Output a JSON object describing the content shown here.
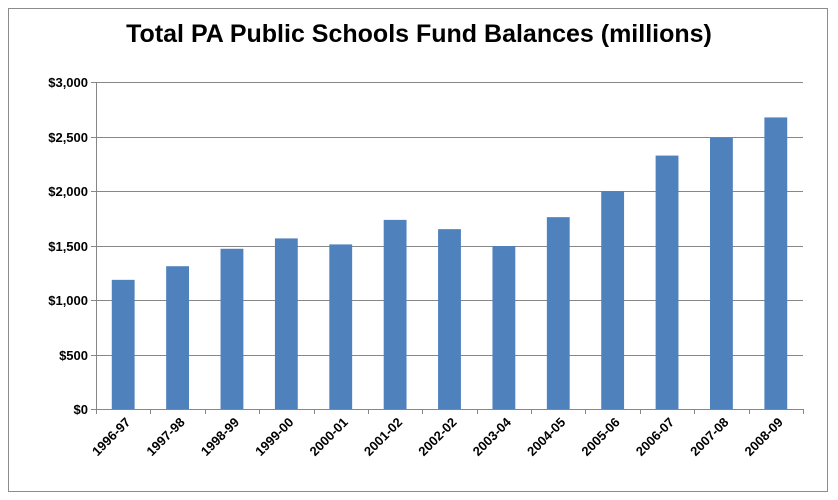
{
  "chart_data": {
    "type": "bar",
    "title": "Total PA Public Schools Fund Balances (millions)",
    "xlabel": "",
    "ylabel": "",
    "categories": [
      "1996-97",
      "1997-98",
      "1998-99",
      "1999-00",
      "2000-01",
      "2001-02",
      "2002-02",
      "2003-04",
      "2004-05",
      "2005-06",
      "2006-07",
      "2007-08",
      "2008-09"
    ],
    "values": [
      1185,
      1310,
      1470,
      1565,
      1510,
      1735,
      1650,
      1495,
      1760,
      2000,
      2325,
      2490,
      2675
    ],
    "ylim": [
      0,
      3000
    ],
    "yticks": [
      0,
      500,
      1000,
      1500,
      2000,
      2500,
      3000
    ],
    "ytick_labels": [
      "$0",
      "$500",
      "$1,000",
      "$1,500",
      "$2,000",
      "$2,500",
      "$3,000"
    ],
    "grid": true,
    "legend": "none",
    "colors": {
      "bar": "#4f81bd",
      "grid": "#878787",
      "axis": "#878787"
    }
  }
}
